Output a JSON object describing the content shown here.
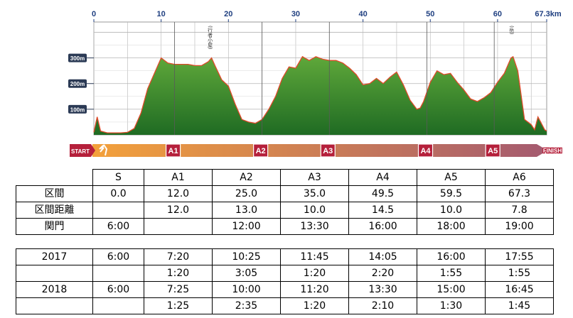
{
  "chart_data": {
    "type": "area",
    "title": "",
    "xlabel": "",
    "ylabel": "",
    "xlim": [
      0,
      67.3
    ],
    "ylim": [
      0,
      440
    ],
    "x_ticks": [
      "0",
      "10",
      "20",
      "30",
      "40",
      "50",
      "60",
      "67.3km"
    ],
    "y_ticks": [
      "100m",
      "200m",
      "300m"
    ],
    "peak_labels": [
      {
        "x": 17.5,
        "text": "(行者小屋)"
      },
      {
        "x": 62.3,
        "text": "(岳)"
      }
    ],
    "series": [
      {
        "x": [
          0,
          0.5,
          1,
          2,
          3,
          4,
          5,
          6,
          7,
          8,
          9,
          10,
          11,
          12,
          13,
          14,
          15,
          16,
          17,
          17.5,
          18,
          19,
          20,
          21,
          22,
          23,
          24,
          25,
          26,
          27,
          28,
          29,
          30,
          31,
          32,
          33,
          34,
          35,
          36,
          37,
          38,
          39,
          40,
          41,
          42,
          43,
          44,
          45,
          46,
          47,
          48,
          48.5,
          49,
          50,
          51,
          52,
          53,
          54,
          55,
          56,
          57,
          58,
          59,
          60,
          61,
          62,
          62.3,
          63,
          64,
          65,
          65.5,
          66,
          67,
          67.3
        ],
        "values": [
          10,
          70,
          15,
          8,
          8,
          8,
          10,
          25,
          85,
          180,
          240,
          300,
          280,
          275,
          275,
          275,
          270,
          270,
          285,
          300,
          270,
          215,
          190,
          120,
          60,
          50,
          45,
          60,
          100,
          150,
          220,
          265,
          260,
          305,
          290,
          305,
          295,
          290,
          290,
          280,
          260,
          235,
          195,
          200,
          220,
          200,
          225,
          245,
          195,
          135,
          100,
          105,
          130,
          205,
          250,
          235,
          240,
          205,
          175,
          140,
          130,
          145,
          165,
          205,
          240,
          300,
          305,
          250,
          60,
          40,
          20,
          70,
          20,
          15
        ]
      }
    ],
    "aid_stations": [
      {
        "label": "A1",
        "x": 12.0
      },
      {
        "label": "A2",
        "x": 25.0
      },
      {
        "label": "A3",
        "x": 35.0
      },
      {
        "label": "A4",
        "x": 49.5
      },
      {
        "label": "A5",
        "x": 59.5
      }
    ],
    "start_label": "START",
    "finish_label": "FINISH"
  },
  "table1": {
    "header": [
      "",
      "S",
      "A1",
      "A2",
      "A3",
      "A4",
      "A5",
      "A6"
    ],
    "rows": [
      [
        "区間",
        "0.0",
        "12.0",
        "25.0",
        "35.0",
        "49.5",
        "59.5",
        "67.3"
      ],
      [
        "区間距離",
        "",
        "12.0",
        "13.0",
        "10.0",
        "14.5",
        "10.0",
        "7.8"
      ],
      [
        "関門",
        "6:00",
        "",
        "12:00",
        "13:30",
        "16:00",
        "18:00",
        "19:00"
      ]
    ]
  },
  "table2": {
    "rows": [
      [
        "2017",
        "6:00",
        "7:20",
        "10:25",
        "11:45",
        "14:05",
        "16:00",
        "17:55"
      ],
      [
        "",
        "",
        "1:20",
        "3:05",
        "1:20",
        "2:20",
        "1:55",
        "1:55"
      ],
      [
        "2018",
        "6:00",
        "7:25",
        "10:00",
        "11:20",
        "13:30",
        "15:00",
        "16:45"
      ],
      [
        "",
        "",
        "1:25",
        "2:35",
        "1:20",
        "2:10",
        "1:30",
        "1:45"
      ]
    ]
  },
  "colors": {
    "area_top": "#5fa83a",
    "area_bottom": "#1f6b23",
    "profile_line": "#e04a2a",
    "grid": "#b5b5b5",
    "axis_text": "#1f3f80",
    "bar_start": "#f3a13b",
    "bar_end": "#a45a70",
    "badge_fill": "#b5203b"
  }
}
